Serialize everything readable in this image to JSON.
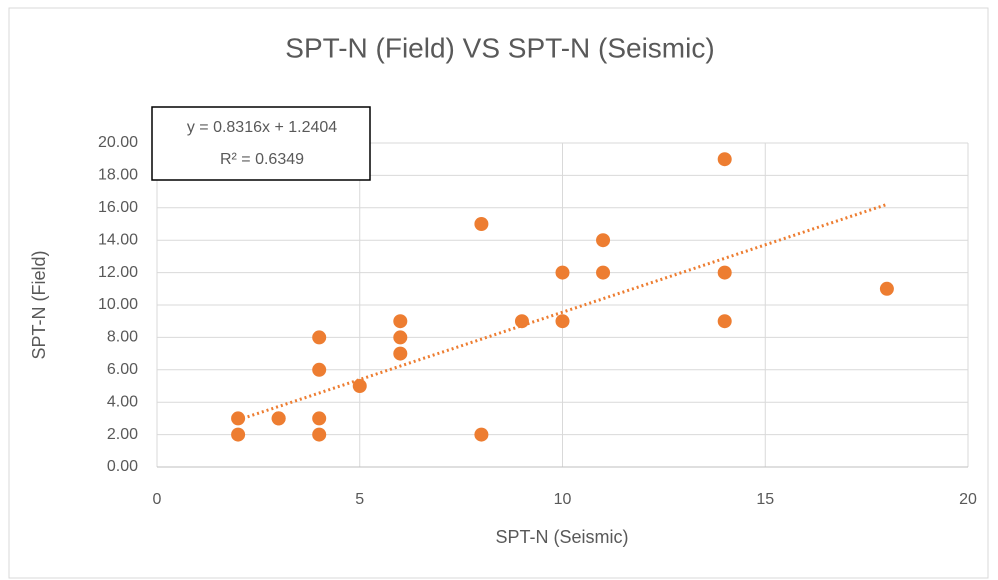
{
  "chart_data": {
    "type": "scatter",
    "title": "SPT-N (Field) VS SPT-N (Seismic)",
    "xlabel": "SPT-N (Seismic)",
    "ylabel": "SPT-N (Field)",
    "series": [
      {
        "name": "SPT-N (Field)",
        "color": "#ED7D31",
        "x": [
          2,
          2,
          3,
          3,
          4,
          4,
          4,
          4,
          5,
          6,
          6,
          6,
          8,
          8,
          9,
          10,
          10,
          11,
          11,
          14,
          14,
          14,
          18
        ],
        "values": [
          3,
          2,
          3,
          3,
          8,
          6,
          3,
          2,
          5,
          9,
          8,
          7,
          15,
          2,
          9,
          12,
          9,
          14,
          12,
          19,
          12,
          9,
          11
        ]
      }
    ],
    "trendline": {
      "slope": 0.8316,
      "intercept": 1.2404,
      "equation_label": "y = 0.8316x + 1.2404",
      "r2_label": "R² = 0.6349"
    },
    "xlim": [
      0,
      20
    ],
    "xticks": [
      0,
      5,
      10,
      15,
      20
    ],
    "ylim": [
      0,
      20
    ],
    "yticks": [
      {
        "value": 0,
        "label": "0.00"
      },
      {
        "value": 2,
        "label": "2.00"
      },
      {
        "value": 4,
        "label": "4.00"
      },
      {
        "value": 6,
        "label": "6.00"
      },
      {
        "value": 8,
        "label": "8.00"
      },
      {
        "value": 10,
        "label": "10.00"
      },
      {
        "value": 12,
        "label": "12.00"
      },
      {
        "value": 14,
        "label": "14.00"
      },
      {
        "value": 16,
        "label": "16.00"
      },
      {
        "value": 18,
        "label": "18.00"
      },
      {
        "value": 20,
        "label": "20.00"
      }
    ],
    "grid": true
  }
}
